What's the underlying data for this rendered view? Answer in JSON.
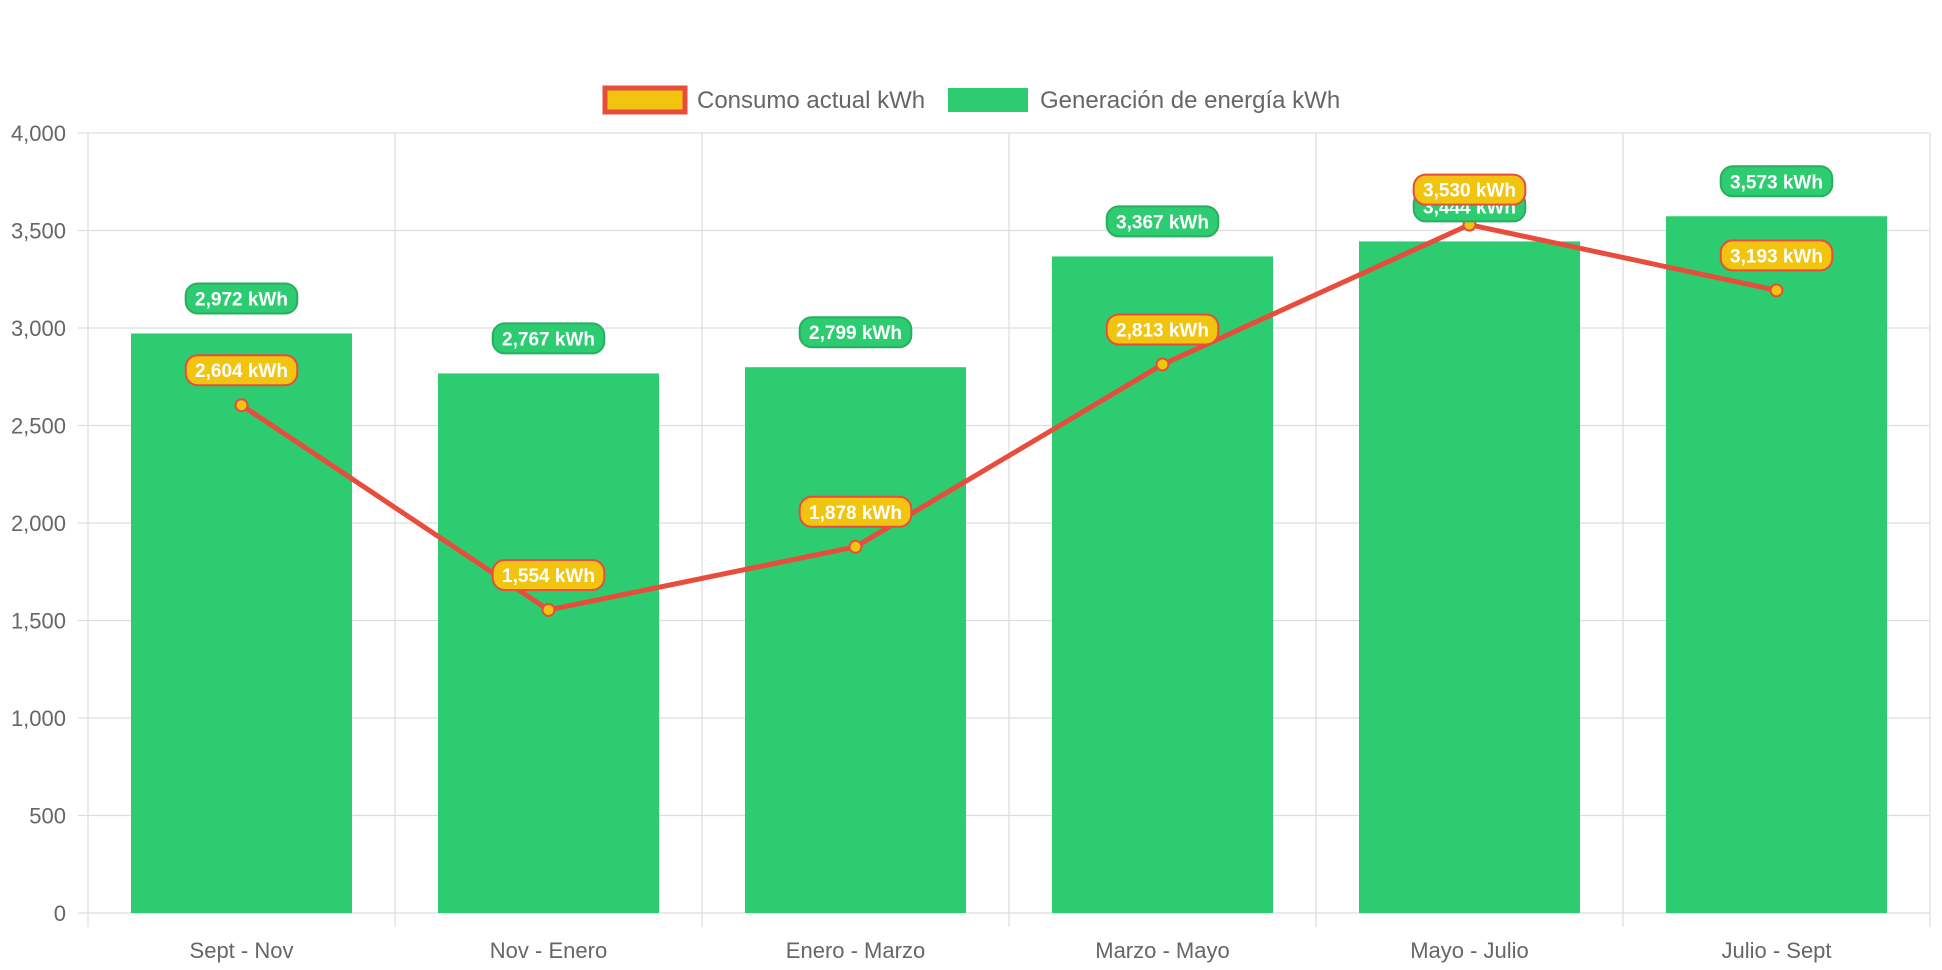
{
  "chart_data": {
    "type": "bar",
    "categories": [
      "Sept - Nov",
      "Nov - Enero",
      "Enero - Marzo",
      "Marzo - Mayo",
      "Mayo - Julio",
      "Julio - Sept"
    ],
    "series": [
      {
        "name": "Consumo actual kWh",
        "type": "line",
        "values": [
          2604,
          1554,
          1878,
          2813,
          3530,
          3193
        ],
        "labels": [
          "2,604 kWh",
          "1,554 kWh",
          "1,878 kWh",
          "2,813 kWh",
          "3,530 kWh",
          "3,193 kWh"
        ],
        "line_color": "#e74c3c",
        "fill_color": "#f1c40f"
      },
      {
        "name": "Generación de energía kWh",
        "type": "bar",
        "values": [
          2972,
          2767,
          2799,
          3367,
          3444,
          3573
        ],
        "labels": [
          "2,972 kWh",
          "2,767 kWh",
          "2,799 kWh",
          "3,367 kWh",
          "3,444 kWh",
          "3,573 kWh"
        ],
        "color": "#2ecc71",
        "label_border": "#27ae60"
      }
    ],
    "y_ticks": [
      "0",
      "500",
      "1,000",
      "1,500",
      "2,000",
      "2,500",
      "3,000",
      "3,500",
      "4,000"
    ],
    "ylim": [
      0,
      4000
    ],
    "xlabel": "",
    "ylabel": "",
    "title": "",
    "grid": true,
    "legend_position": "top-center"
  }
}
